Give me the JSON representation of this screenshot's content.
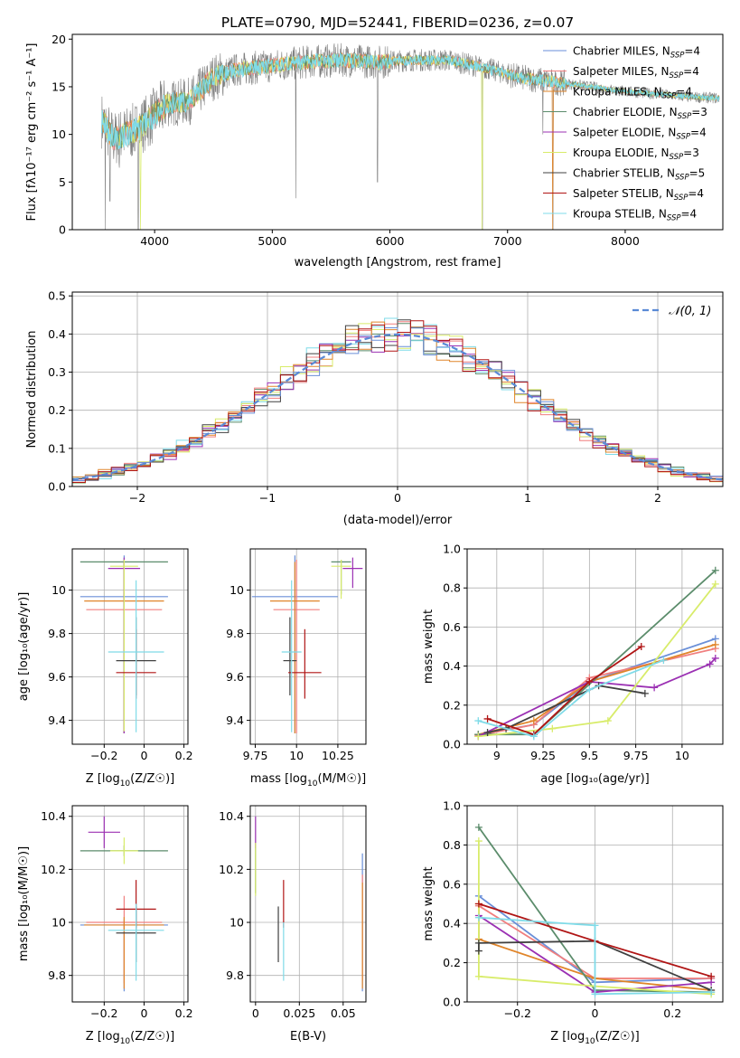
{
  "figure": {
    "title": "PLATE=0790, MJD=52441, FIBERID=0236, z=0.07"
  },
  "colors": [
    "#6a8fd8",
    "#f07f7f",
    "#e0852a",
    "#5b8c6b",
    "#9b30b3",
    "#d8ec6a",
    "#404040",
    "#b01515",
    "#7fdbe8"
  ],
  "chart_data": [
    {
      "id": "spectrum",
      "type": "line",
      "xlabel": "wavelength [Angstrom, rest frame]",
      "ylabel": "Flux [fλ10⁻¹⁷ erg cm⁻² s⁻¹ A⁻¹]",
      "xlim": [
        3300,
        8830
      ],
      "ylim": [
        0,
        20.5
      ],
      "xticks": [
        4000,
        5000,
        6000,
        7000,
        8000
      ],
      "yticks": [
        0,
        5,
        10,
        15,
        20
      ],
      "legend_position": "top-right",
      "legend": [
        {
          "base": "Chabrier MILES, N",
          "sub": "SSP",
          "suffix": "=4"
        },
        {
          "base": "Salpeter MILES, N",
          "sub": "SSP",
          "suffix": "=4"
        },
        {
          "base": "Kroupa MILES, N",
          "sub": "SSP",
          "suffix": "=4"
        },
        {
          "base": "Chabrier ELODIE, N",
          "sub": "SSP",
          "suffix": "=3"
        },
        {
          "base": "Salpeter ELODIE, N",
          "sub": "SSP",
          "suffix": "=4"
        },
        {
          "base": "Kroupa ELODIE, N",
          "sub": "SSP",
          "suffix": "=3"
        },
        {
          "base": "Chabrier STELIB, N",
          "sub": "SSP",
          "suffix": "=5"
        },
        {
          "base": "Salpeter STELIB, N",
          "sub": "SSP",
          "suffix": "=4"
        },
        {
          "base": "Kroupa STELIB, N",
          "sub": "SSP",
          "suffix": "=4"
        }
      ],
      "continuum": [
        [
          3550,
          11.5
        ],
        [
          3650,
          9.5
        ],
        [
          3750,
          10
        ],
        [
          3850,
          10.5
        ],
        [
          3950,
          11.5
        ],
        [
          4100,
          13.2
        ],
        [
          4300,
          13.5
        ],
        [
          4500,
          16
        ],
        [
          4700,
          16.8
        ],
        [
          5000,
          17.2
        ],
        [
          5300,
          17.6
        ],
        [
          5600,
          17.8
        ],
        [
          5900,
          17.6
        ],
        [
          6200,
          17.8
        ],
        [
          6500,
          17.8
        ],
        [
          6800,
          17
        ],
        [
          7100,
          16
        ],
        [
          7400,
          15.5
        ],
        [
          7700,
          15
        ],
        [
          8000,
          14.5
        ],
        [
          8300,
          14.2
        ],
        [
          8600,
          13.9
        ],
        [
          8800,
          13.8
        ]
      ],
      "notes": "observed spectrum (grey) with nine model fits overlaid; deep dips near 3580, 3850, 5200, 5900, 6780, 7380 A"
    },
    {
      "id": "residuals",
      "type": "histogram",
      "xlabel": "(data-model)/error",
      "ylabel": "Normed distribution",
      "xlim": [
        -2.5,
        2.5
      ],
      "ylim": [
        0,
        0.51
      ],
      "xticks": [
        -2,
        -1,
        0,
        1,
        2
      ],
      "yticks": [
        0.0,
        0.1,
        0.2,
        0.3,
        0.4,
        0.5
      ],
      "grid": true,
      "legend_position": "top-right",
      "reference_curve": "N(0,1)",
      "legend_label": "𝒩(0, 1)",
      "bin_width": 0.1
    },
    {
      "id": "age_vs_Z",
      "type": "scatter",
      "xlabel_base": "Z [log",
      "xlabel_sub": "10",
      "xlabel_rest": "(Z/Z☉)]",
      "ylabel": "age  [log₁₀(age/yr)]",
      "xlim": [
        -0.36,
        0.22
      ],
      "ylim": [
        9.29,
        10.19
      ],
      "xticks": [
        -0.2,
        0.0,
        0.2
      ],
      "yticks": [
        9.4,
        9.6,
        9.8,
        10.0
      ],
      "grid": true,
      "points": [
        {
          "x": -0.1,
          "y": 9.97,
          "xerr": 0.22,
          "yerr": [
            0.63,
            0.19
          ]
        },
        {
          "x": -0.1,
          "y": 9.91,
          "xerr": 0.19,
          "yerr": [
            0.57,
            0.23
          ]
        },
        {
          "x": -0.1,
          "y": 9.95,
          "xerr": 0.2,
          "yerr": [
            0.61,
            0.18
          ]
        },
        {
          "x": -0.1,
          "y": 10.13,
          "xerr": 0.22,
          "yerr": [
            0.79,
            0.01
          ]
        },
        {
          "x": -0.1,
          "y": 10.1,
          "xerr": 0.08,
          "yerr": [
            0.76,
            0.05
          ]
        },
        {
          "x": -0.1,
          "y": 10.11,
          "xerr": 0.07,
          "yerr": [
            0.76,
            0.03
          ]
        },
        {
          "x": -0.04,
          "y": 9.675,
          "xerr": 0.1,
          "yerr": [
            0.16,
            0.2
          ]
        },
        {
          "x": -0.04,
          "y": 9.62,
          "xerr": 0.1,
          "yerr": [
            0.12,
            0.2
          ]
        },
        {
          "x": -0.04,
          "y": 9.715,
          "xerr": 0.14,
          "yerr": [
            0.37,
            0.33
          ]
        }
      ]
    },
    {
      "id": "age_vs_mass",
      "type": "scatter",
      "xlabel_base": "mass [log",
      "xlabel_sub": "10",
      "xlabel_rest": "(M/M☉)]",
      "xlim": [
        9.72,
        10.42
      ],
      "ylim": [
        9.29,
        10.19
      ],
      "xticks": [
        9.75,
        10.0,
        10.25
      ],
      "yticks": [
        9.4,
        9.6,
        9.8,
        10.0
      ],
      "grid": true,
      "points": [
        {
          "x": 9.99,
          "y": 9.97,
          "xerr": 0.26,
          "yerr": [
            0.63,
            0.19
          ]
        },
        {
          "x": 10.0,
          "y": 9.91,
          "xerr": 0.14,
          "yerr": [
            0.57,
            0.23
          ]
        },
        {
          "x": 9.99,
          "y": 9.95,
          "xerr": 0.15,
          "yerr": [
            0.61,
            0.18
          ]
        },
        {
          "x": 10.27,
          "y": 10.13,
          "xerr": 0.06,
          "yerr": [
            0.15,
            0.01
          ]
        },
        {
          "x": 10.34,
          "y": 10.1,
          "xerr": 0.06,
          "yerr": [
            0.09,
            0.05
          ]
        },
        {
          "x": 10.27,
          "y": 10.11,
          "xerr": 0.06,
          "yerr": [
            0.15,
            0.03
          ]
        },
        {
          "x": 9.96,
          "y": 9.675,
          "xerr": 0.04,
          "yerr": [
            0.16,
            0.2
          ]
        },
        {
          "x": 10.05,
          "y": 9.62,
          "xerr": 0.1,
          "yerr": [
            0.12,
            0.2
          ]
        },
        {
          "x": 9.97,
          "y": 9.715,
          "xerr": 0.06,
          "yerr": [
            0.37,
            0.33
          ]
        }
      ]
    },
    {
      "id": "weight_vs_age",
      "type": "line",
      "xlabel": "age  [log₁₀(age/yr)]",
      "ylabel": "mass weight",
      "xlim": [
        8.84,
        10.22
      ],
      "ylim": [
        0,
        1.0
      ],
      "xticks": [
        9.0,
        9.25,
        9.5,
        9.75,
        10.0
      ],
      "yticks": [
        0.0,
        0.2,
        0.4,
        0.6,
        0.8,
        1.0
      ],
      "grid": true,
      "series": [
        {
          "x": [
            8.9,
            9.2,
            9.5,
            10.18
          ],
          "y": [
            0.05,
            0.1,
            0.32,
            0.54
          ]
        },
        {
          "x": [
            8.9,
            9.2,
            9.5,
            10.18
          ],
          "y": [
            0.045,
            0.1,
            0.34,
            0.49
          ]
        },
        {
          "x": [
            8.9,
            9.2,
            9.5,
            10.18
          ],
          "y": [
            0.05,
            0.12,
            0.32,
            0.51
          ]
        },
        {
          "x": [
            8.9,
            9.2,
            10.18
          ],
          "y": [
            0.05,
            0.05,
            0.89
          ]
        },
        {
          "x": [
            8.9,
            9.5,
            9.85,
            10.15,
            10.18
          ],
          "y": [
            0.04,
            0.32,
            0.29,
            0.41,
            0.44
          ]
        },
        {
          "x": [
            8.9,
            9.3,
            9.6,
            10.18
          ],
          "y": [
            0.04,
            0.08,
            0.12,
            0.82
          ]
        },
        {
          "x": [
            8.95,
            9.05,
            9.55,
            9.8
          ],
          "y": [
            0.06,
            0.08,
            0.3,
            0.26
          ]
        },
        {
          "x": [
            8.95,
            9.2,
            9.5,
            9.78
          ],
          "y": [
            0.13,
            0.05,
            0.32,
            0.5
          ]
        },
        {
          "x": [
            8.9,
            9.2,
            9.5,
            9.9
          ],
          "y": [
            0.12,
            0.04,
            0.28,
            0.43
          ]
        }
      ]
    },
    {
      "id": "mass_vs_Z",
      "type": "scatter",
      "xlabel_base": "Z [log",
      "xlabel_sub": "10",
      "xlabel_rest": "(Z/Z☉)]",
      "ylabel": "mass [log₁₀(M/M☉)]",
      "xlim": [
        -0.36,
        0.22
      ],
      "ylim": [
        9.7,
        10.44
      ],
      "xticks": [
        -0.2,
        0.0,
        0.2
      ],
      "yticks": [
        9.8,
        10.0,
        10.2,
        10.4
      ],
      "grid": true,
      "points": [
        {
          "x": -0.1,
          "y": 9.99,
          "xerr": 0.22,
          "yerr": [
            0.25,
            0.02
          ]
        },
        {
          "x": -0.1,
          "y": 10.0,
          "xerr": 0.19,
          "yerr": [
            0.23,
            0.1
          ]
        },
        {
          "x": -0.1,
          "y": 9.99,
          "xerr": 0.2,
          "yerr": [
            0.24,
            0.03
          ]
        },
        {
          "x": -0.1,
          "y": 10.27,
          "xerr": 0.22,
          "yerr": [
            0.02,
            0.02
          ]
        },
        {
          "x": -0.2,
          "y": 10.34,
          "xerr": 0.08,
          "yerr": [
            0.06,
            0.06
          ]
        },
        {
          "x": -0.1,
          "y": 10.27,
          "xerr": 0.07,
          "yerr": [
            0.05,
            0.05
          ]
        },
        {
          "x": -0.04,
          "y": 9.96,
          "xerr": 0.1,
          "yerr": [
            0.11,
            0.1
          ]
        },
        {
          "x": -0.04,
          "y": 10.05,
          "xerr": 0.1,
          "yerr": [
            0.07,
            0.11
          ]
        },
        {
          "x": -0.04,
          "y": 9.97,
          "xerr": 0.14,
          "yerr": [
            0.19,
            0.1
          ]
        }
      ]
    },
    {
      "id": "mass_vs_EBV",
      "type": "scatter",
      "xlabel": "E(B-V)",
      "xlim": [
        -0.003,
        0.063
      ],
      "ylim": [
        9.7,
        10.44
      ],
      "xticks": [
        0.0,
        0.025,
        0.05
      ],
      "yticks": [
        9.8,
        10.0,
        10.2,
        10.4
      ],
      "grid": true,
      "points": [
        {
          "x": 0.061,
          "y": 10.0,
          "xerr": 0.0,
          "yerr": [
            0.26,
            0.26
          ]
        },
        {
          "x": 0.061,
          "y": 9.96,
          "xerr": 0.0,
          "yerr": [
            0.18,
            0.22
          ]
        },
        {
          "x": 0.061,
          "y": 9.95,
          "xerr": 0.0,
          "yerr": [
            0.2,
            0.2
          ]
        },
        {
          "x": 0.0,
          "y": 10.25,
          "xerr": 0.0,
          "yerr": [
            0.14,
            0.05
          ]
        },
        {
          "x": 0.0,
          "y": 10.34,
          "xerr": 0.0,
          "yerr": [
            0.06,
            0.06
          ]
        },
        {
          "x": 0.0,
          "y": 10.2,
          "xerr": 0.0,
          "yerr": [
            0.1,
            0.1
          ]
        },
        {
          "x": 0.013,
          "y": 9.96,
          "xerr": 0.0,
          "yerr": [
            0.11,
            0.1
          ]
        },
        {
          "x": 0.016,
          "y": 10.05,
          "xerr": 0.0,
          "yerr": [
            0.07,
            0.11
          ]
        },
        {
          "x": 0.016,
          "y": 9.9,
          "xerr": 0.0,
          "yerr": [
            0.12,
            0.1
          ]
        }
      ]
    },
    {
      "id": "weight_vs_Z",
      "type": "line",
      "xlabel_base": "Z [log",
      "xlabel_sub": "10",
      "xlabel_rest": "(Z/Z☉)]",
      "ylabel": "mass weight",
      "xlim": [
        -0.33,
        0.33
      ],
      "ylim": [
        0,
        1.0
      ],
      "xticks": [
        -0.2,
        0.0,
        0.2
      ],
      "yticks": [
        0.0,
        0.2,
        0.4,
        0.6,
        0.8,
        1.0
      ],
      "grid": true,
      "series": [
        {
          "x": [
            -0.3,
            0.0,
            0.3
          ],
          "y": [
            0.54,
            0.1,
            0.12
          ]
        },
        {
          "x": [
            -0.3,
            0.0,
            0.3
          ],
          "y": [
            0.49,
            0.12,
            0.12
          ]
        },
        {
          "x": [
            -0.3,
            -0.3,
            0.0,
            0.3
          ],
          "y": [
            0.5,
            0.32,
            0.12,
            0.06
          ]
        },
        {
          "x": [
            -0.3,
            0.0,
            0.3
          ],
          "y": [
            0.89,
            0.06,
            0.05
          ]
        },
        {
          "x": [
            -0.3,
            0.0,
            0.3
          ],
          "y": [
            0.44,
            0.05,
            0.1
          ]
        },
        {
          "x": [
            -0.3,
            -0.3,
            0.0,
            0.3
          ],
          "y": [
            0.82,
            0.13,
            0.08,
            0.04
          ]
        },
        {
          "x": [
            -0.3,
            -0.3,
            0.0,
            0.3
          ],
          "y": [
            0.26,
            0.3,
            0.31,
            0.06
          ]
        },
        {
          "x": [
            -0.3,
            0.0,
            0.3
          ],
          "y": [
            0.5,
            0.31,
            0.13
          ]
        },
        {
          "x": [
            -0.3,
            0.0,
            0.0,
            0.3
          ],
          "y": [
            0.43,
            0.39,
            0.04,
            0.05
          ]
        }
      ]
    }
  ]
}
